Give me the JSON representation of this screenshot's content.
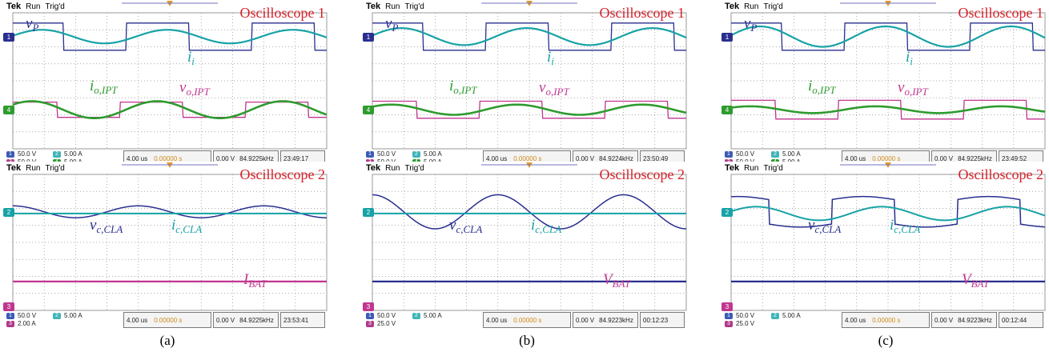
{
  "header": {
    "tek": "Tek",
    "run": "Run",
    "trig": "Trig'd"
  },
  "colors": {
    "vp": "#2a2f8f",
    "ii": "#17a2a6",
    "io": "#2e9b2e",
    "vo": "#c1368f",
    "title": "#d8212a",
    "grid": "#8c8c8c"
  },
  "panels": [
    {
      "caption": "(a)",
      "scopes": [
        {
          "title": "Oscilloscope 1",
          "labels": {
            "vp_main": "v",
            "vp_sub": "P",
            "ii_main": "i",
            "ii_sub": "i",
            "io_main": "i",
            "io_sub": "o,IPT",
            "vo_main": "v",
            "vo_sub": "o,IPT"
          },
          "status": {
            "ch1": "50.0 V",
            "ch2": "5.00 A",
            "ch3": "50.0 V",
            "ch4": "5.00 A",
            "time": "4.00 us",
            "offset": "0.00000 s",
            "trig": "0.00 V",
            "freq": "84.9225kHz",
            "clock": "23:49:17"
          }
        },
        {
          "title": "Oscilloscope 2",
          "labels": {
            "vc_main": "v",
            "vc_sub": "c,CLA",
            "ic_main": "i",
            "ic_sub": "c,CLA",
            "bat_main": "I",
            "bat_sub": "BAT"
          },
          "status": {
            "ch1": "50.0 V",
            "ch2": "5.00 A",
            "ch3": "2.00 A",
            "ch4": "",
            "time": "4.00 us",
            "offset": "0.00000 s",
            "trig": "0.00 V",
            "freq": "84.9225kHz",
            "clock": "23:53:41"
          }
        }
      ]
    },
    {
      "caption": "(b)",
      "scopes": [
        {
          "title": "Oscilloscope 1",
          "labels": {
            "vp_main": "v",
            "vp_sub": "P",
            "ii_main": "i",
            "ii_sub": "i",
            "io_main": "i",
            "io_sub": "o,IPT",
            "vo_main": "v",
            "vo_sub": "o,IPT"
          },
          "status": {
            "ch1": "50.0 V",
            "ch2": "5.00 A",
            "ch3": "50.0 V",
            "ch4": "5.00 A",
            "time": "4.00 us",
            "offset": "0.00000 s",
            "trig": "0.00 V",
            "freq": "84.9224kHz",
            "clock": "23:50:49"
          }
        },
        {
          "title": "Oscilloscope 2",
          "labels": {
            "vc_main": "v",
            "vc_sub": "c,CLA",
            "ic_main": "i",
            "ic_sub": "c,CLA",
            "bat_main": "V",
            "bat_sub": "BAT"
          },
          "status": {
            "ch1": "50.0 V",
            "ch2": "5.00 A",
            "ch3": "25.0 V",
            "ch4": "",
            "time": "4.00 us",
            "offset": "0.00000 s",
            "trig": "0.00 V",
            "freq": "84.9223kHz",
            "clock": "00:12:23"
          }
        }
      ]
    },
    {
      "caption": "(c)",
      "scopes": [
        {
          "title": "Oscilloscope 1",
          "labels": {
            "vp_main": "v",
            "vp_sub": "P",
            "ii_main": "i",
            "ii_sub": "i",
            "io_main": "i",
            "io_sub": "o,IPT",
            "vo_main": "v",
            "vo_sub": "o,IPT"
          },
          "status": {
            "ch1": "50.0 V",
            "ch2": "5.00 A",
            "ch3": "50.0 V",
            "ch4": "5.00 A",
            "time": "4.00 us",
            "offset": "0.00000 s",
            "trig": "0.00 V",
            "freq": "84.9225kHz",
            "clock": "23:49:52"
          }
        },
        {
          "title": "Oscilloscope 2",
          "labels": {
            "vc_main": "v",
            "vc_sub": "c,CLA",
            "ic_main": "i",
            "ic_sub": "c,CLA",
            "bat_main": "V",
            "bat_sub": "BAT"
          },
          "status": {
            "ch1": "50.0 V",
            "ch2": "5.00 A",
            "ch3": "25.0 V",
            "ch4": "",
            "time": "4.00 us",
            "offset": "0.00000 s",
            "trig": "0.00 V",
            "freq": "84.9223kHz",
            "clock": "00:12:44"
          }
        }
      ]
    }
  ],
  "chart_data": [
    {
      "type": "line",
      "title": "Oscilloscope 1 (a)",
      "series": [
        {
          "name": "v_P",
          "shape": "square",
          "amplitude_div": 0.8
        },
        {
          "name": "i_i",
          "shape": "sine",
          "amplitude_div": 0.4
        },
        {
          "name": "i_o,IPT",
          "shape": "sine",
          "amplitude_div": 0.5
        },
        {
          "name": "v_o,IPT",
          "shape": "square",
          "amplitude_div": 0.45
        }
      ],
      "xlabel": "time",
      "x_scale": "4.00 us/div"
    },
    {
      "type": "line",
      "title": "Oscilloscope 2 (a)",
      "series": [
        {
          "name": "v_c,CLA",
          "shape": "sine",
          "amplitude_div": 0.35
        },
        {
          "name": "i_c,CLA",
          "shape": "dc"
        },
        {
          "name": "I_BAT",
          "shape": "dc"
        }
      ],
      "xlabel": "time",
      "x_scale": "4.00 us/div"
    },
    {
      "type": "line",
      "title": "Oscilloscope 1 (b)",
      "series": [
        {
          "name": "v_P",
          "shape": "square",
          "amplitude_div": 0.8
        },
        {
          "name": "i_i",
          "shape": "sine",
          "amplitude_div": 0.5
        },
        {
          "name": "i_o,IPT",
          "shape": "sine",
          "amplitude_div": 0.3
        },
        {
          "name": "v_o,IPT",
          "shape": "square",
          "amplitude_div": 0.5
        }
      ],
      "xlabel": "time",
      "x_scale": "4.00 us/div"
    },
    {
      "type": "line",
      "title": "Oscilloscope 2 (b)",
      "series": [
        {
          "name": "v_c,CLA",
          "shape": "sine",
          "amplitude_div": 1.0
        },
        {
          "name": "i_c,CLA",
          "shape": "dc"
        },
        {
          "name": "V_BAT",
          "shape": "dc"
        }
      ],
      "xlabel": "time",
      "x_scale": "4.00 us/div"
    },
    {
      "type": "line",
      "title": "Oscilloscope 1 (c)",
      "series": [
        {
          "name": "v_P",
          "shape": "square",
          "amplitude_div": 0.8
        },
        {
          "name": "i_i",
          "shape": "sine",
          "amplitude_div": 0.6
        },
        {
          "name": "i_o,IPT",
          "shape": "sine",
          "amplitude_div": 0.2
        },
        {
          "name": "v_o,IPT",
          "shape": "square",
          "amplitude_div": 0.55
        }
      ],
      "xlabel": "time",
      "x_scale": "4.00 us/div"
    },
    {
      "type": "line",
      "title": "Oscilloscope 2 (c)",
      "series": [
        {
          "name": "v_c,CLA",
          "shape": "square",
          "amplitude_div": 0.9
        },
        {
          "name": "i_c,CLA",
          "shape": "sine",
          "amplitude_div": 0.4
        },
        {
          "name": "V_BAT",
          "shape": "dc"
        }
      ],
      "xlabel": "time",
      "x_scale": "4.00 us/div"
    }
  ]
}
